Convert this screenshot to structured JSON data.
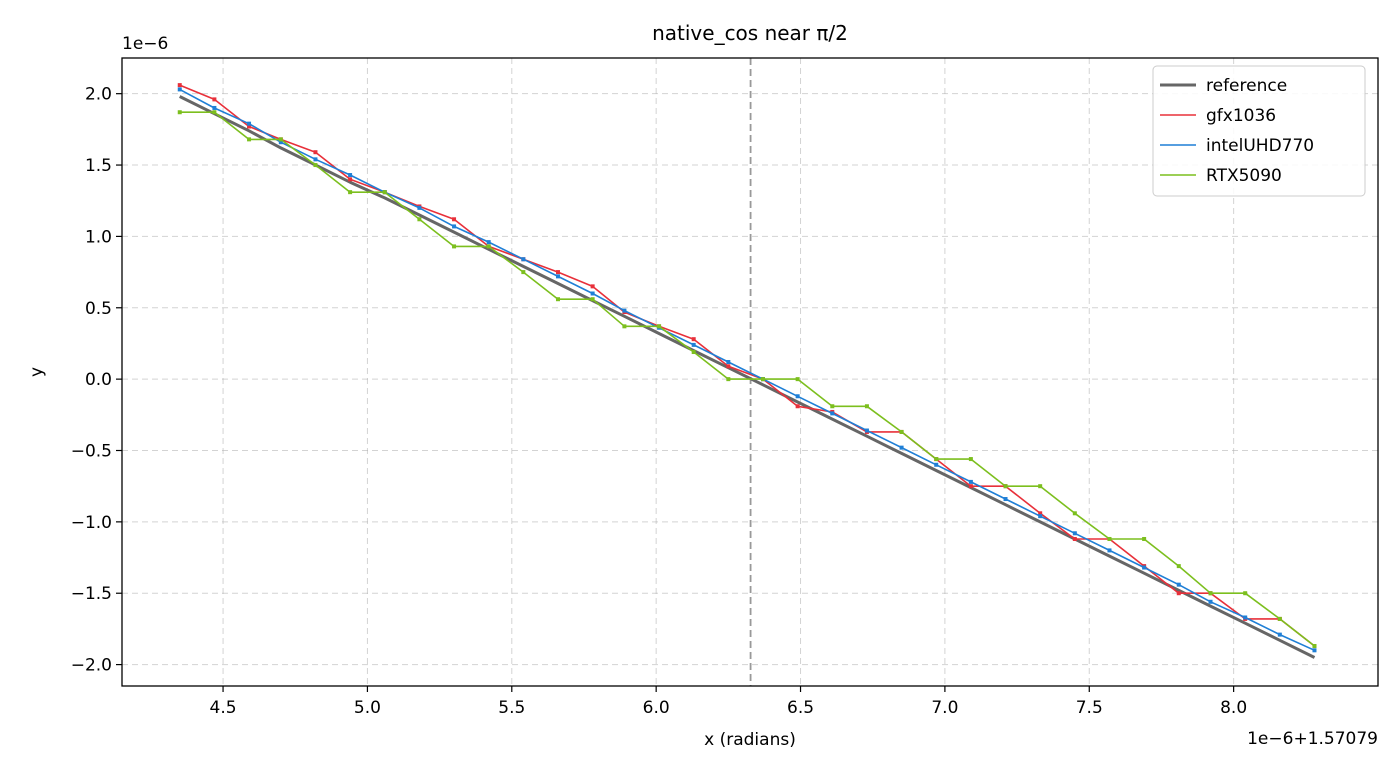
{
  "chart_data": {
    "type": "line",
    "title": "native_cos near π/2",
    "xlabel": "x (radians)",
    "ylabel": "y",
    "x_offset_text": "1e−6+1.57079",
    "y_offset_text": "1e−6",
    "xlim": [
      4.15,
      8.5
    ],
    "ylim": [
      -2.15,
      2.25
    ],
    "x_ticks": [
      4.5,
      5.0,
      5.5,
      6.0,
      6.5,
      7.0,
      7.5,
      8.0
    ],
    "x_tick_labels": [
      "4.5",
      "5.0",
      "5.5",
      "6.0",
      "6.5",
      "7.0",
      "7.5",
      "8.0"
    ],
    "y_ticks": [
      -2.0,
      -1.5,
      -1.0,
      -0.5,
      0.0,
      0.5,
      1.0,
      1.5,
      2.0
    ],
    "y_tick_labels": [
      "−2.0",
      "−1.5",
      "−1.0",
      "−0.5",
      "0.0",
      "0.5",
      "1.0",
      "1.5",
      "2.0"
    ],
    "grid": true,
    "legend_position": "top-right",
    "vline_x": 6.327,
    "vline_color": "#999999",
    "x": [
      4.35,
      4.47,
      4.59,
      4.7,
      4.82,
      4.94,
      5.06,
      5.18,
      5.3,
      5.42,
      5.54,
      5.66,
      5.78,
      5.89,
      6.01,
      6.13,
      6.25,
      6.37,
      6.49,
      6.61,
      6.73,
      6.85,
      6.97,
      7.09,
      7.21,
      7.33,
      7.45,
      7.57,
      7.69,
      7.81,
      7.92,
      8.04,
      8.16,
      8.28
    ],
    "series": [
      {
        "name": "reference",
        "color": "#666666",
        "line_width": 3,
        "values": [
          1.98,
          1.86,
          1.74,
          1.62,
          1.5,
          1.38,
          1.27,
          1.15,
          1.03,
          0.91,
          0.79,
          0.67,
          0.55,
          0.44,
          0.32,
          0.2,
          0.08,
          -0.04,
          -0.16,
          -0.28,
          -0.4,
          -0.52,
          -0.64,
          -0.76,
          -0.88,
          -1.0,
          -1.12,
          -1.24,
          -1.36,
          -1.48,
          -1.59,
          -1.71,
          -1.83,
          -1.95
        ]
      },
      {
        "name": "gfx1036",
        "color": "#e8303a",
        "line_width": 1.6,
        "values": [
          2.06,
          1.96,
          1.77,
          1.68,
          1.59,
          1.4,
          1.31,
          1.21,
          1.12,
          0.93,
          0.84,
          0.75,
          0.65,
          0.47,
          0.37,
          0.28,
          0.09,
          0.0,
          -0.19,
          -0.23,
          -0.37,
          -0.37,
          -0.56,
          -0.75,
          -0.75,
          -0.94,
          -1.12,
          -1.12,
          -1.31,
          -1.5,
          -1.5,
          -1.68,
          -1.68,
          -1.87
        ]
      },
      {
        "name": "intelUHD770",
        "color": "#1f7fd6",
        "line_width": 1.6,
        "values": [
          2.03,
          1.9,
          1.79,
          1.66,
          1.54,
          1.43,
          1.31,
          1.2,
          1.07,
          0.96,
          0.84,
          0.72,
          0.6,
          0.48,
          0.36,
          0.24,
          0.12,
          0.0,
          -0.12,
          -0.24,
          -0.36,
          -0.48,
          -0.6,
          -0.72,
          -0.84,
          -0.96,
          -1.08,
          -1.2,
          -1.32,
          -1.44,
          -1.56,
          -1.67,
          -1.79,
          -1.9
        ]
      },
      {
        "name": "RTX5090",
        "color": "#7cbf1e",
        "line_width": 1.6,
        "values": [
          1.87,
          1.87,
          1.68,
          1.68,
          1.5,
          1.31,
          1.31,
          1.12,
          0.93,
          0.93,
          0.75,
          0.56,
          0.56,
          0.37,
          0.37,
          0.19,
          0.0,
          0.0,
          0.0,
          -0.19,
          -0.19,
          -0.37,
          -0.56,
          -0.56,
          -0.75,
          -0.75,
          -0.94,
          -1.12,
          -1.12,
          -1.31,
          -1.5,
          -1.5,
          -1.68,
          -1.87
        ]
      }
    ]
  }
}
